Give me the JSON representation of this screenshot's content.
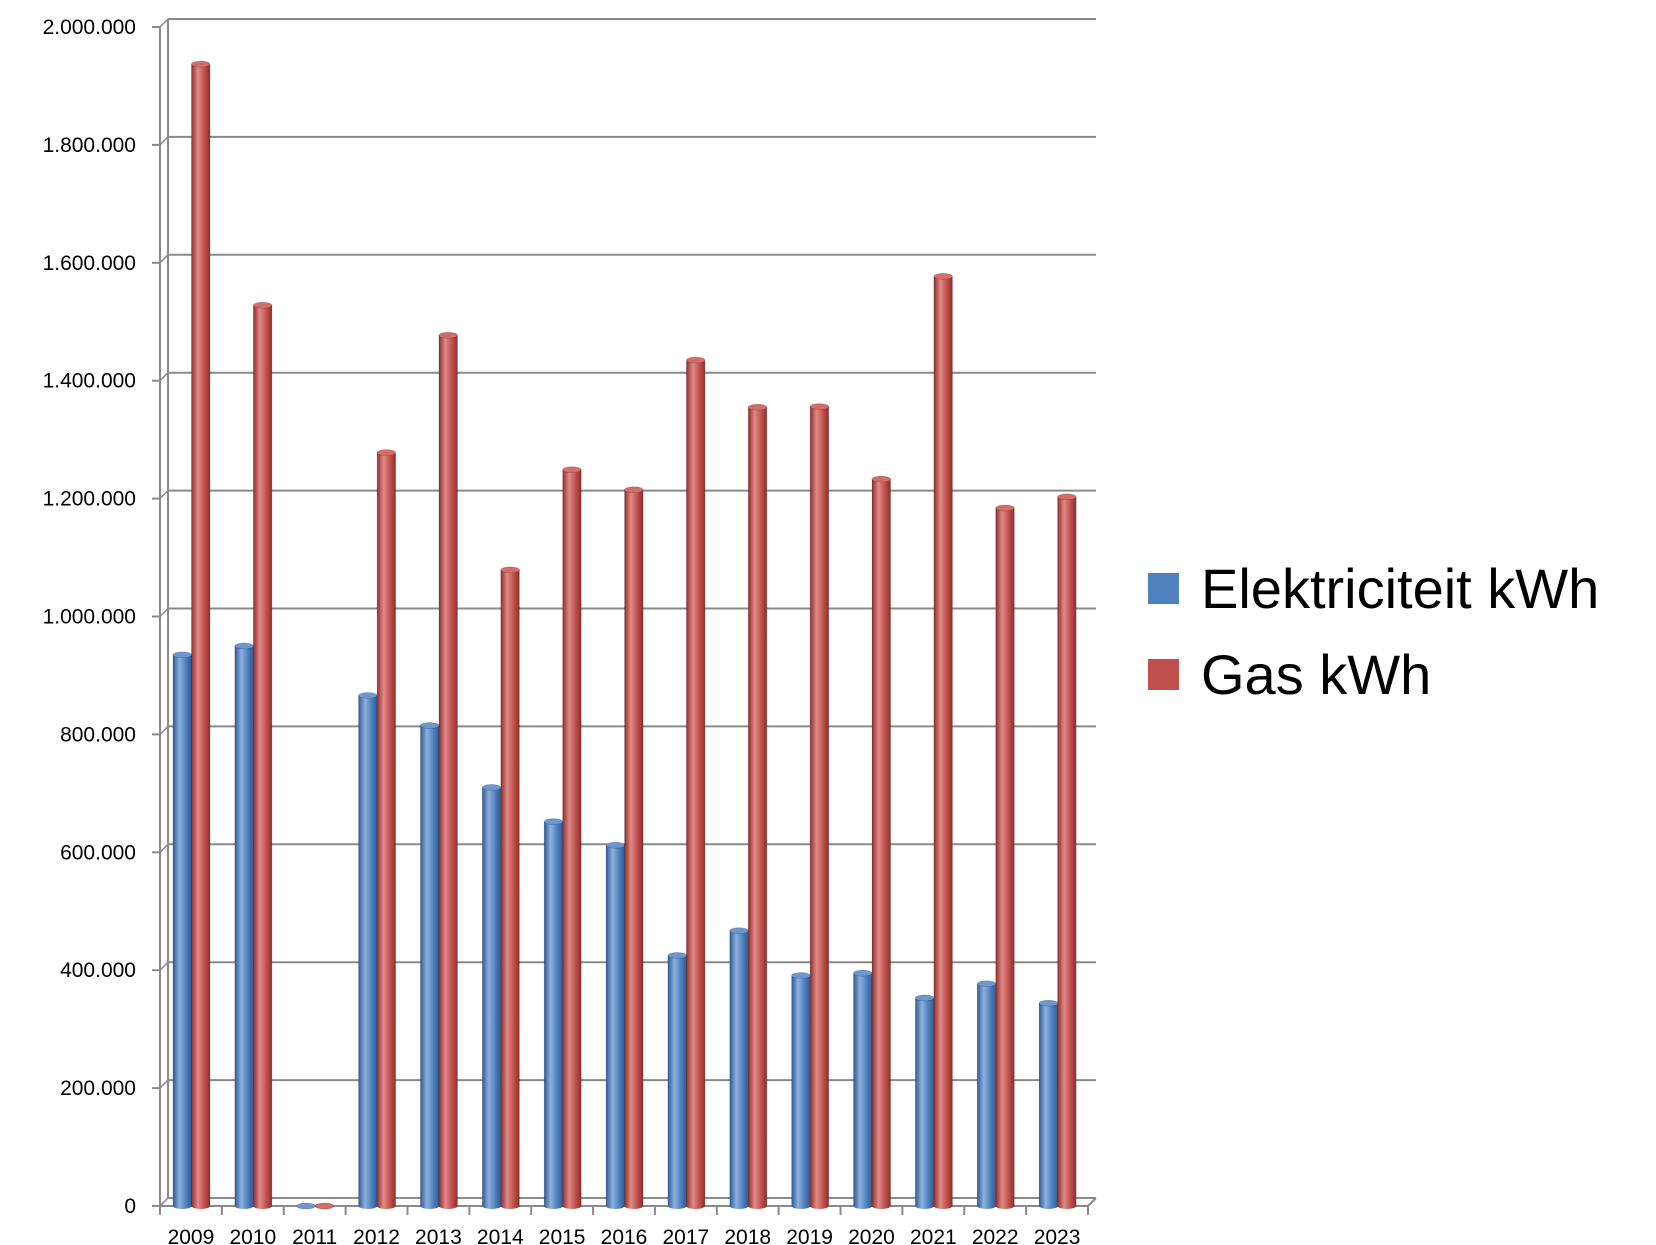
{
  "chart_data": {
    "type": "bar",
    "categories": [
      "2009",
      "2010",
      "2011",
      "2012",
      "2013",
      "2014",
      "2015",
      "2016",
      "2017",
      "2018",
      "2019",
      "2020",
      "2021",
      "2022",
      "2023"
    ],
    "series": [
      {
        "name": "Elektriciteit kWh",
        "color": "#4F81BD",
        "values": [
          935000,
          950000,
          0,
          866000,
          815000,
          710000,
          652000,
          612000,
          425000,
          467000,
          391000,
          395000,
          353000,
          377000,
          344000
        ]
      },
      {
        "name": "Gas kWh",
        "color": "#C0504D",
        "values": [
          1937000,
          1528000,
          0,
          1278000,
          1477000,
          1079000,
          1249000,
          1215000,
          1435000,
          1355000,
          1356000,
          1233000,
          1577000,
          1184000,
          1203000
        ]
      }
    ],
    "ylim": [
      0,
      2000000
    ],
    "y_ticks": [
      "0",
      "200.000",
      "400.000",
      "600.000",
      "800.000",
      "1.000.000",
      "1.200.000",
      "1.400.000",
      "1.600.000",
      "1.800.000",
      "2.000.000"
    ],
    "grid": true,
    "legend_position": "right"
  }
}
